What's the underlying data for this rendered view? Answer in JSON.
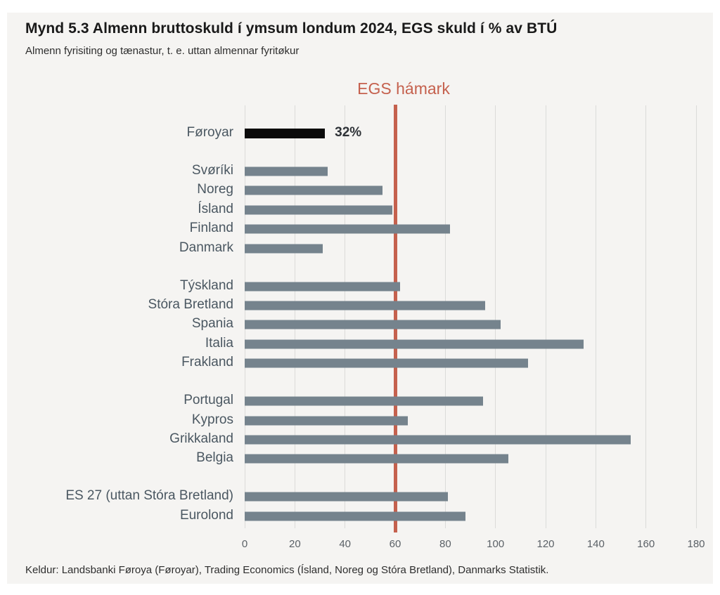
{
  "header": {
    "title": "Mynd 5.3 Almenn bruttoskuld í ymsum londum 2024, EGS skuld í % av BTÚ",
    "subtitle": "Almenn fyrisiting og tænastur, t. e. uttan almennar fyritøkur"
  },
  "chart_data": {
    "type": "bar",
    "orientation": "horizontal",
    "xlim": [
      0,
      180
    ],
    "xticks": [
      0,
      20,
      40,
      60,
      80,
      100,
      120,
      140,
      160,
      180
    ],
    "grid": true,
    "legend": "none",
    "bar_color": "#75838d",
    "highlight_bar_color": "#0b0b0b",
    "reference_line": {
      "label": "EGS hámark",
      "x": 60,
      "color": "#c5614e"
    },
    "groups": [
      {
        "rows": [
          {
            "label": "Føroyar",
            "value": 32,
            "highlight": true,
            "value_label": "32%"
          }
        ]
      },
      {
        "rows": [
          {
            "label": "Svøríki",
            "value": 33
          },
          {
            "label": "Noreg",
            "value": 55
          },
          {
            "label": "Ísland",
            "value": 59
          },
          {
            "label": "Finland",
            "value": 82
          },
          {
            "label": "Danmark",
            "value": 31
          }
        ]
      },
      {
        "rows": [
          {
            "label": "Týskland",
            "value": 62
          },
          {
            "label": "Stóra Bretland",
            "value": 96
          },
          {
            "label": "Spania",
            "value": 102
          },
          {
            "label": "Italia",
            "value": 135
          },
          {
            "label": "Frakland",
            "value": 113
          }
        ]
      },
      {
        "rows": [
          {
            "label": "Portugal",
            "value": 95
          },
          {
            "label": "Kypros",
            "value": 65
          },
          {
            "label": "Grikkaland",
            "value": 154
          },
          {
            "label": "Belgia",
            "value": 105
          }
        ]
      },
      {
        "rows": [
          {
            "label": "ES 27 (uttan Stóra Bretland)",
            "value": 81
          },
          {
            "label": "Eurolond",
            "value": 88
          }
        ]
      }
    ]
  },
  "footer": {
    "source": "Keldur: Landsbanki Føroya (Føroyar), Trading Economics (Ísland, Noreg og Stóra Bretland), Danmarks Statistik."
  }
}
